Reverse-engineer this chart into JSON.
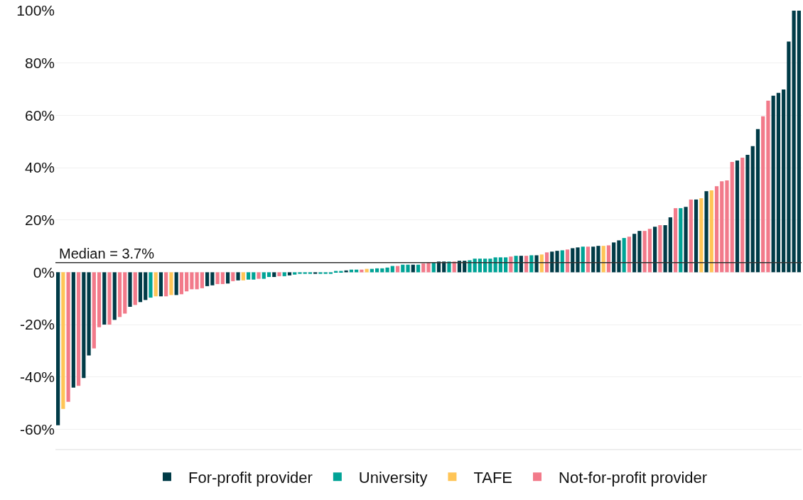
{
  "chart_data": {
    "type": "bar",
    "categories": [
      null,
      null,
      null,
      null,
      null,
      null,
      null,
      null,
      null,
      null,
      null,
      null,
      null,
      null,
      null,
      null,
      null,
      null,
      null,
      null,
      null,
      null,
      null,
      null,
      null,
      null,
      null,
      null,
      null,
      null,
      null,
      null,
      null,
      null,
      null,
      null,
      null,
      null,
      null,
      null,
      null,
      null,
      null,
      null,
      null,
      null,
      null,
      null,
      null,
      null,
      null,
      null,
      null,
      null,
      null,
      null,
      null,
      null,
      null,
      null,
      null,
      null,
      null,
      null,
      null,
      null,
      null,
      null,
      null,
      null,
      null,
      null,
      null,
      null,
      null,
      null,
      null,
      null,
      null,
      null,
      null,
      null,
      null,
      null,
      null,
      null,
      null,
      null,
      null,
      null,
      null,
      null,
      null,
      null,
      null,
      null,
      null,
      null,
      null,
      null,
      null,
      null,
      null,
      null,
      null,
      null,
      null,
      null,
      null,
      null,
      null,
      null,
      null,
      null,
      null,
      null,
      null,
      null,
      null,
      null,
      null,
      null,
      null,
      null,
      null,
      null,
      null,
      null,
      null,
      null,
      null,
      null,
      null,
      null,
      null,
      null,
      null,
      null,
      null,
      null,
      null,
      null,
      null,
      null,
      null
    ],
    "series": [
      {
        "name": "For-profit provider",
        "color": "#003b47",
        "values": [
          -58.5,
          null,
          null,
          -44.1,
          null,
          -40.4,
          -31.8,
          null,
          null,
          -20.0,
          null,
          -18.2,
          null,
          null,
          -13.2,
          null,
          -11.4,
          -10.6,
          null,
          null,
          -9.2,
          null,
          null,
          -8.7,
          null,
          null,
          null,
          null,
          null,
          -5.3,
          -5.0,
          null,
          null,
          -4.3,
          null,
          -3.1,
          null,
          null,
          null,
          null,
          null,
          null,
          -1.8,
          null,
          null,
          -1.2,
          null,
          null,
          null,
          null,
          -0.6,
          null,
          null,
          null,
          null,
          null,
          0.7,
          null,
          null,
          null,
          null,
          null,
          null,
          null,
          null,
          null,
          null,
          null,
          null,
          2.9,
          null,
          null,
          null,
          null,
          4.1,
          4.1,
          null,
          null,
          4.4,
          4.4,
          null,
          null,
          null,
          null,
          null,
          null,
          null,
          null,
          null,
          null,
          6.3,
          null,
          null,
          6.5,
          null,
          null,
          7.9,
          8.2,
          null,
          null,
          9.2,
          9.5,
          null,
          null,
          9.8,
          10.1,
          null,
          null,
          11.4,
          12.2,
          null,
          null,
          14.7,
          15.8,
          null,
          null,
          17.4,
          null,
          18.0,
          21.0,
          null,
          null,
          25.0,
          null,
          27.8,
          null,
          31.0,
          null,
          null,
          null,
          null,
          null,
          42.7,
          null,
          44.9,
          48.2,
          54.7,
          null,
          null,
          67.5,
          68.6,
          69.9,
          88.2,
          100,
          100
        ]
      },
      {
        "name": "University",
        "color": "#00a396",
        "values": [
          null,
          null,
          null,
          null,
          null,
          null,
          null,
          null,
          null,
          null,
          null,
          null,
          null,
          null,
          null,
          null,
          null,
          null,
          -9.7,
          null,
          null,
          null,
          null,
          null,
          null,
          null,
          null,
          null,
          null,
          null,
          null,
          null,
          null,
          null,
          null,
          null,
          null,
          -2.8,
          -2.8,
          null,
          -2.5,
          -1.8,
          null,
          null,
          -1.5,
          null,
          -0.9,
          -0.6,
          -0.6,
          -0.6,
          null,
          -0.6,
          -0.6,
          -0.6,
          0.5,
          0.5,
          null,
          1.0,
          1.0,
          null,
          null,
          1.3,
          1.5,
          1.5,
          1.8,
          2.4,
          null,
          2.9,
          2.9,
          null,
          2.9,
          null,
          null,
          3.8,
          null,
          null,
          4.1,
          null,
          null,
          null,
          4.6,
          5.2,
          5.2,
          5.2,
          5.2,
          5.7,
          5.7,
          5.7,
          null,
          6.3,
          null,
          null,
          6.5,
          null,
          null,
          null,
          null,
          null,
          8.4,
          null,
          null,
          null,
          9.8,
          null,
          null,
          null,
          null,
          null,
          null,
          null,
          13.1,
          null,
          null,
          null,
          null,
          null,
          null,
          null,
          null,
          null,
          null,
          24.5,
          null,
          null,
          null,
          null,
          null,
          null,
          null,
          null,
          null,
          null,
          null,
          null,
          null,
          null,
          null,
          null,
          null,
          null,
          null,
          null,
          null,
          null,
          null
        ]
      },
      {
        "name": "TAFE",
        "color": "#ffc557",
        "values": [
          null,
          -52.2,
          null,
          null,
          null,
          null,
          null,
          null,
          null,
          null,
          null,
          null,
          null,
          null,
          null,
          null,
          null,
          null,
          null,
          -9.2,
          null,
          null,
          -8.7,
          null,
          null,
          null,
          null,
          null,
          null,
          null,
          null,
          null,
          null,
          null,
          null,
          null,
          -3.1,
          null,
          null,
          null,
          null,
          null,
          null,
          null,
          null,
          null,
          null,
          null,
          null,
          null,
          null,
          null,
          null,
          null,
          null,
          null,
          null,
          null,
          null,
          null,
          1.3,
          null,
          null,
          null,
          null,
          null,
          null,
          null,
          null,
          null,
          null,
          null,
          null,
          null,
          null,
          null,
          null,
          null,
          null,
          null,
          null,
          null,
          null,
          null,
          null,
          null,
          null,
          null,
          null,
          null,
          null,
          null,
          null,
          null,
          6.8,
          null,
          null,
          null,
          null,
          null,
          null,
          null,
          null,
          null,
          null,
          null,
          10.1,
          null,
          null,
          null,
          null,
          null,
          null,
          null,
          null,
          null,
          null,
          null,
          null,
          null,
          null,
          null,
          null,
          null,
          null,
          28.3,
          null,
          31.3,
          null,
          null,
          null,
          null,
          null,
          null,
          null,
          null,
          null,
          null,
          null,
          null,
          null,
          null,
          null,
          null,
          null
        ]
      },
      {
        "name": "Not-for-profit provider",
        "color": "#f27a8a",
        "values": [
          null,
          null,
          -49.5,
          null,
          -43.4,
          null,
          null,
          -29.1,
          -21.0,
          null,
          -20.0,
          null,
          -17.1,
          -15.8,
          null,
          -12.5,
          null,
          null,
          null,
          null,
          null,
          -9.2,
          null,
          null,
          -8.4,
          -7.3,
          -6.5,
          -6.5,
          -6.1,
          null,
          null,
          -4.5,
          -4.5,
          null,
          -3.4,
          null,
          null,
          null,
          null,
          -2.5,
          null,
          null,
          null,
          -1.5,
          null,
          null,
          null,
          null,
          null,
          null,
          null,
          null,
          null,
          null,
          null,
          null,
          null,
          null,
          null,
          1.0,
          null,
          null,
          null,
          null,
          null,
          null,
          2.4,
          null,
          null,
          null,
          null,
          3.4,
          3.8,
          null,
          null,
          null,
          null,
          4.1,
          null,
          null,
          null,
          null,
          null,
          null,
          null,
          null,
          null,
          null,
          6.0,
          null,
          null,
          6.3,
          null,
          null,
          null,
          7.6,
          null,
          null,
          null,
          8.7,
          null,
          null,
          null,
          9.8,
          null,
          null,
          null,
          10.3,
          null,
          null,
          null,
          13.6,
          null,
          null,
          15.8,
          16.6,
          null,
          18.0,
          null,
          null,
          24.5,
          null,
          null,
          27.8,
          null,
          null,
          null,
          null,
          32.9,
          34.8,
          35.1,
          42.2,
          null,
          43.8,
          null,
          null,
          null,
          59.6,
          65.6,
          null,
          null,
          null,
          null,
          null,
          null
        ]
      }
    ],
    "ylim": [
      -67.5,
      100
    ],
    "yticks": [
      {
        "value": -60,
        "label": "-60%"
      },
      {
        "value": -40,
        "label": "-40%"
      },
      {
        "value": -20,
        "label": "-20%"
      },
      {
        "value": 0,
        "label": "0%"
      },
      {
        "value": 20,
        "label": "20%"
      },
      {
        "value": 40,
        "label": "40%"
      },
      {
        "value": 60,
        "label": "60%"
      },
      {
        "value": 80,
        "label": "80%"
      },
      {
        "value": 100,
        "label": "100%"
      }
    ],
    "ref_lines": [
      {
        "axis": "y",
        "value": 3.7,
        "label": "Median = 3.7%",
        "color": "#333333"
      }
    ],
    "grid": "y",
    "legend": "bottom",
    "tick_labels": "y"
  }
}
